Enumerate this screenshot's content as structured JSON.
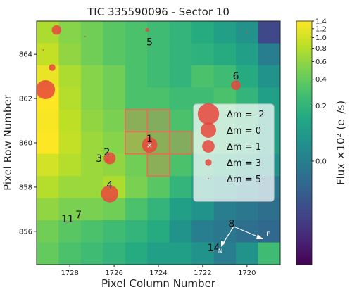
{
  "chart_data": {
    "type": "heatmap",
    "title": "TIC 335590096 - Sector 10",
    "xlabel": "Pixel Column Number",
    "ylabel": "Pixel Row Number",
    "x_range": [
      1729.5,
      1718.5
    ],
    "y_range": [
      854.5,
      865.5
    ],
    "x_ticks": [
      1728,
      1726,
      1724,
      1722,
      1720
    ],
    "y_ticks": [
      856,
      858,
      860,
      862,
      864
    ],
    "colorbar": {
      "label": "Flux ×10² (e⁻/s)",
      "scale": "log",
      "ticks": [
        {
          "value": 1.4,
          "label": "1.4"
        },
        {
          "value": 1.2,
          "label": "1.2"
        },
        {
          "value": 1.0,
          "label": "1.0"
        },
        {
          "value": 0.8,
          "label": "0.8"
        },
        {
          "value": 0.6,
          "label": "0.6"
        },
        {
          "value": 0.4,
          "label": "0.4"
        },
        {
          "value": 0.2,
          "label": "0.2"
        },
        {
          "value": 0.0,
          "label": "0.0"
        }
      ]
    },
    "pixel_columns": [
      1729,
      1728,
      1727,
      1726,
      1725,
      1724,
      1723,
      1722,
      1721,
      1720,
      1719
    ],
    "pixel_rows": [
      865,
      864,
      863,
      862,
      861,
      860,
      859,
      858,
      857,
      856,
      855
    ],
    "flux": [
      [
        0.75,
        0.55,
        0.45,
        0.35,
        0.3,
        0.25,
        0.2,
        0.15,
        0.1,
        0.05,
        -0.35
      ],
      [
        0.9,
        0.6,
        0.45,
        0.35,
        0.3,
        0.25,
        0.2,
        0.18,
        0.15,
        0.1,
        0.0
      ],
      [
        1.2,
        0.75,
        0.55,
        0.45,
        0.3,
        0.25,
        0.2,
        0.3,
        0.25,
        0.15,
        0.05
      ],
      [
        1.4,
        0.8,
        0.55,
        0.45,
        0.3,
        0.3,
        0.25,
        0.25,
        0.3,
        0.2,
        0.1
      ],
      [
        1.35,
        0.85,
        0.6,
        0.5,
        0.4,
        0.35,
        0.3,
        0.25,
        0.25,
        0.2,
        0.1
      ],
      [
        1.4,
        0.9,
        0.65,
        0.55,
        0.5,
        0.4,
        0.35,
        0.3,
        0.25,
        0.18,
        0.1
      ],
      [
        1.0,
        0.8,
        0.65,
        0.6,
        0.45,
        0.4,
        0.3,
        0.2,
        0.15,
        0.1,
        0.05
      ],
      [
        0.8,
        0.65,
        0.65,
        0.75,
        0.5,
        0.35,
        0.2,
        0.1,
        0.05,
        0.02,
        -0.05
      ],
      [
        0.6,
        0.5,
        0.5,
        0.45,
        0.3,
        0.2,
        0.1,
        0.05,
        0.0,
        -0.05,
        -0.1
      ],
      [
        0.45,
        0.35,
        0.3,
        0.25,
        0.2,
        0.15,
        0.05,
        0.0,
        -0.05,
        -0.1,
        -0.15
      ],
      [
        0.4,
        0.3,
        0.25,
        0.2,
        0.15,
        0.1,
        0.1,
        0.05,
        0.0,
        0.05,
        0.25
      ]
    ],
    "aperture_pixels": [
      {
        "col": 1725,
        "row": 861
      },
      {
        "col": 1724,
        "row": 861
      },
      {
        "col": 1725,
        "row": 860
      },
      {
        "col": 1724,
        "row": 860
      },
      {
        "col": 1723,
        "row": 860
      },
      {
        "col": 1724,
        "row": 859
      }
    ],
    "target_marker": {
      "col": 1724.4,
      "row": 859.9,
      "symbol": "×"
    },
    "stars": [
      {
        "label": "1",
        "col": 1724.4,
        "row": 859.9,
        "dm": 0
      },
      {
        "label": "2",
        "col": 1726.2,
        "row": 859.3,
        "dm": 1.2
      },
      {
        "label": "3",
        "col": 1726.3,
        "row": 859.2,
        "dm": 4
      },
      {
        "label": "4",
        "col": 1726.2,
        "row": 857.7,
        "dm": -0.6
      },
      {
        "label": "5",
        "col": 1724.4,
        "row": 864.4,
        "dm": 5
      },
      {
        "label": "6",
        "col": 1720.5,
        "row": 862.6,
        "dm": 2
      },
      {
        "label": "7",
        "col": 1727.6,
        "row": 856.6,
        "dm": 5
      },
      {
        "label": "8",
        "col": 1720.7,
        "row": 856.2,
        "dm": 6
      },
      {
        "label": "11",
        "col": 1728.1,
        "row": 856.4,
        "dm": 5
      },
      {
        "label": "14",
        "col": 1721.5,
        "row": 855.1,
        "dm": 6
      },
      {
        "label": "",
        "col": 1728.6,
        "row": 865.1,
        "dm": 2
      },
      {
        "label": "",
        "col": 1728.8,
        "row": 863.4,
        "dm": 3
      },
      {
        "label": "",
        "col": 1729.1,
        "row": 862.4,
        "dm": -1.2
      },
      {
        "label": "",
        "col": 1729.2,
        "row": 864.2,
        "dm": 5
      },
      {
        "label": "",
        "col": 1724.5,
        "row": 865.1,
        "dm": 4
      },
      {
        "label": "",
        "col": 1727.3,
        "row": 864.8,
        "dm": 6
      },
      {
        "label": "",
        "col": 1720.0,
        "row": 865.0,
        "dm": 6
      }
    ],
    "legend": {
      "placement": "center-right",
      "entries": [
        {
          "label": "Δm = -2",
          "dm": -2
        },
        {
          "label": "Δm = 0",
          "dm": 0
        },
        {
          "label": "Δm = 1",
          "dm": 1
        },
        {
          "label": "Δm = 3",
          "dm": 3
        },
        {
          "label": "Δm = 5",
          "dm": 5
        }
      ]
    },
    "compass": {
      "north": "N",
      "east": "E"
    }
  },
  "colors": {
    "star": "#e8473d",
    "aperture": "#f06a50",
    "target_marker": "#ffffff",
    "compass": "#ffffff",
    "legend_bg": "#ffffff"
  }
}
